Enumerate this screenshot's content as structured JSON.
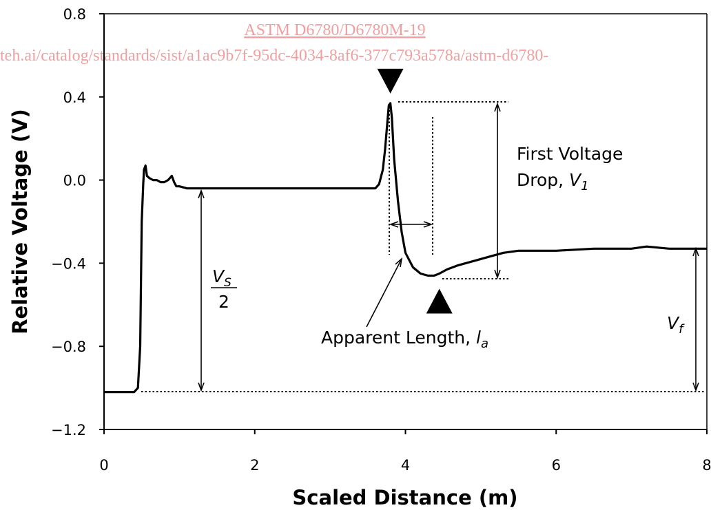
{
  "watermark": {
    "line1": "ASTM D6780/D6780M-19",
    "line2": "teh.ai/catalog/standards/sist/a1ac9b7f-95dc-4034-8af6-377c793a578a/astm-d6780-"
  },
  "chart_data": {
    "type": "line",
    "title": "",
    "xlabel": "Scaled Distance (m)",
    "ylabel": "Relative Voltage (V)",
    "xlim": [
      0,
      8
    ],
    "ylim": [
      -1.2,
      0.8
    ],
    "xticks": [
      0,
      2,
      4,
      6,
      8
    ],
    "yticks": [
      0.8,
      0.4,
      0.0,
      -0.4,
      -0.8,
      -1.2
    ],
    "yticklabels": [
      "0.8",
      "0.4",
      "0.0",
      "−0.4",
      "−0.8",
      "−1.2"
    ],
    "grid": false,
    "series": [
      {
        "x": [
          0.0,
          0.1,
          0.2,
          0.3,
          0.4,
          0.45,
          0.48,
          0.5,
          0.52,
          0.53,
          0.55,
          0.57,
          0.6,
          0.65,
          0.7,
          0.75,
          0.8,
          0.85,
          0.9,
          0.93,
          0.96,
          1.0,
          1.1,
          1.3,
          1.6,
          2.0,
          2.2,
          2.4,
          2.6,
          2.8,
          3.0,
          3.2,
          3.4,
          3.6,
          3.65,
          3.7,
          3.73,
          3.76,
          3.78,
          3.8,
          3.82,
          3.85,
          3.9,
          3.95,
          4.0,
          4.1,
          4.2,
          4.3,
          4.38,
          4.45,
          4.55,
          4.7,
          4.9,
          5.1,
          5.3,
          5.5,
          5.8,
          6.0,
          6.5,
          7.0,
          7.2,
          7.5,
          8.0
        ],
        "values": [
          -1.02,
          -1.02,
          -1.02,
          -1.02,
          -1.02,
          -1.0,
          -0.8,
          -0.2,
          -0.02,
          0.05,
          0.07,
          0.02,
          0.01,
          0.0,
          0.0,
          -0.01,
          -0.01,
          0.0,
          0.02,
          -0.01,
          -0.03,
          -0.03,
          -0.04,
          -0.04,
          -0.04,
          -0.04,
          -0.04,
          -0.04,
          -0.04,
          -0.04,
          -0.04,
          -0.04,
          -0.04,
          -0.04,
          -0.02,
          0.05,
          0.15,
          0.28,
          0.36,
          0.37,
          0.3,
          0.1,
          -0.1,
          -0.25,
          -0.35,
          -0.42,
          -0.45,
          -0.46,
          -0.46,
          -0.45,
          -0.43,
          -0.41,
          -0.39,
          -0.37,
          -0.35,
          -0.34,
          -0.34,
          -0.34,
          -0.33,
          -0.33,
          -0.32,
          -0.33,
          -0.33
        ]
      }
    ],
    "annotations": {
      "first_voltage_drop": {
        "line1": "First Voltage",
        "line2_prefix": "Drop, ",
        "symbol": "V",
        "sub": "1"
      },
      "apparent_length": {
        "prefix": "Apparent Length, ",
        "symbol": "l",
        "sub": "a"
      },
      "vs_half": {
        "numerator": "V",
        "numerator_sub": "S",
        "denominator": "2"
      },
      "vf": {
        "symbol": "V",
        "sub": "f"
      }
    },
    "markers": [
      {
        "x": 3.8,
        "y": 0.37,
        "dir": "down"
      },
      {
        "x": 4.45,
        "y": -0.46,
        "dir": "up"
      }
    ]
  }
}
